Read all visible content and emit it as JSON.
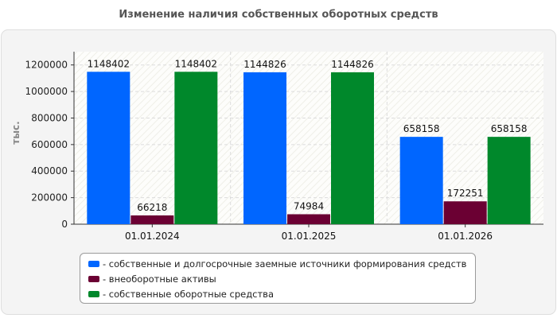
{
  "title": "Изменение наличия собственных оборотных средств",
  "chart_data": {
    "type": "bar",
    "ylabel": "тыс.",
    "ylim": [
      0,
      1300000
    ],
    "yticks": [
      0,
      200000,
      400000,
      600000,
      800000,
      1000000,
      1200000
    ],
    "grid": true,
    "legend_position": "bottom",
    "categories": [
      "01.01.2024",
      "01.01.2025",
      "01.01.2026"
    ],
    "series": [
      {
        "name": "- собственные и долгосрочные заемные источники формирования средств",
        "color": "#0066ff",
        "values": [
          1148402,
          1144826,
          658158
        ]
      },
      {
        "name": "- внеоборотные активы",
        "color": "#6b0033",
        "values": [
          66218,
          74984,
          172251
        ]
      },
      {
        "name": "- собственные оборотные средства",
        "color": "#00882b",
        "values": [
          1148402,
          1144826,
          658158
        ]
      }
    ]
  }
}
